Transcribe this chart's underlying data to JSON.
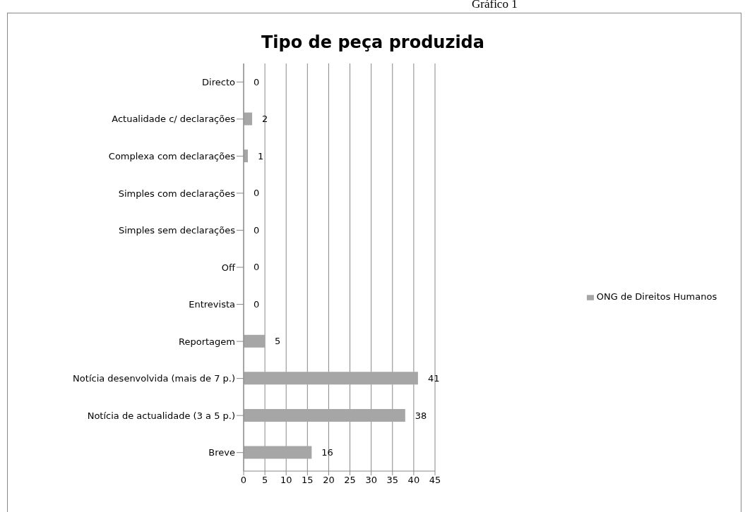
{
  "chart_data": {
    "type": "bar",
    "orientation": "horizontal",
    "title": "Tipo de peça produzida",
    "annotations": [
      "Gráfico 1"
    ],
    "categories": [
      "Directo",
      "Actualidade c/ declarações",
      "Complexa com declarações",
      "Simples com declarações",
      "Simples sem declarações",
      "Off",
      "Entrevista",
      "Reportagem",
      "Notícia desenvolvida (mais de 7 p.)",
      "Notícia de actualidade (3 a 5 p.)",
      "Breve"
    ],
    "series": [
      {
        "name": "ONG de Direitos Humanos",
        "color": "#a6a6a6",
        "values": [
          0,
          2,
          1,
          0,
          0,
          0,
          0,
          5,
          41,
          38,
          16
        ]
      }
    ],
    "xlim": [
      0,
      45
    ],
    "xticks": [
      0,
      5,
      10,
      15,
      20,
      25,
      30,
      35,
      40,
      45
    ],
    "grid": "x",
    "legend": "right",
    "data_labels": true
  }
}
